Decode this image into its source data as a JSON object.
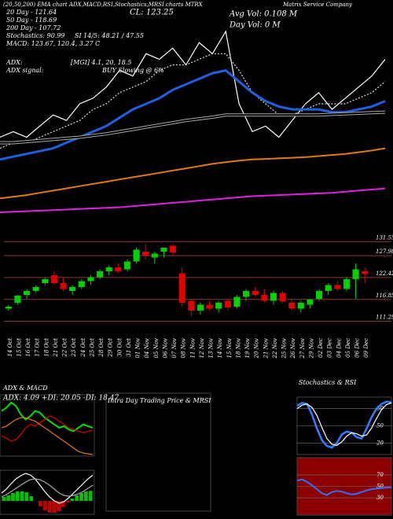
{
  "header": {
    "title": "(20,50,200) EMA chart ADX,MACD,RSI,Stochastics,MRSI charts MTRX",
    "company": "Matrix Service Company",
    "lines": [
      "20 Day - 121.64",
      "50 Day - 118.69",
      "200 Day - 107.72",
      "Stochastics: 90.99",
      "MACD: 123.67, 120.4, 3.27 C"
    ],
    "mid": [
      "CL: 123.25",
      "SI 14/5: 48.21 / 47.55"
    ],
    "right": [
      "Avg Vol: 0.108 M",
      "Day Vol: 0 M"
    ],
    "adx": [
      "ADX:",
      "ADX signal:"
    ],
    "adx_vals": [
      "[MGI] 4.1, 20, 18.5",
      "BUY Slowing @ 6%"
    ]
  },
  "chart_data": [
    {
      "type": "line",
      "series": [
        {
          "color": "#ffffff",
          "values": [
            112,
            113,
            112,
            114,
            116,
            115,
            118,
            119,
            121,
            124,
            123,
            127,
            126,
            128,
            125,
            129,
            127,
            131,
            118,
            113,
            114,
            112,
            115,
            118,
            120,
            117,
            119,
            121,
            123,
            126
          ]
        },
        {
          "color": "#dddddd",
          "dash": true,
          "values": [
            110,
            111,
            111,
            112,
            113,
            114,
            115,
            117,
            118,
            120,
            121,
            122,
            124,
            125,
            125,
            126,
            127,
            127,
            124,
            120,
            118,
            116,
            116,
            117,
            118,
            118,
            118,
            119,
            120,
            122
          ]
        },
        {
          "color": "#1f5fe0",
          "width": 3,
          "values": [
            108,
            108.5,
            109,
            109.5,
            110,
            111,
            112,
            113,
            114,
            115.5,
            117,
            118,
            119,
            120.5,
            121.5,
            122.5,
            123.5,
            124,
            122,
            120,
            118.5,
            117.5,
            117,
            117,
            117,
            116.5,
            116.5,
            117,
            117.5,
            118.5
          ]
        },
        {
          "color": "#aaaaaa",
          "double": true,
          "values": [
            111,
            111,
            111.2,
            111.4,
            111.6,
            111.8,
            112,
            112.3,
            112.6,
            113,
            113.4,
            113.8,
            114.2,
            114.6,
            115,
            115.3,
            115.6,
            116,
            116,
            116,
            116,
            116,
            116,
            116,
            116,
            116.1,
            116.2,
            116.3,
            116.4,
            116.5
          ]
        },
        {
          "color": "#e07a10",
          "width": 2,
          "values": [
            101,
            101.3,
            101.6,
            102,
            102.4,
            102.8,
            103.2,
            103.6,
            104,
            104.4,
            104.8,
            105.2,
            105.6,
            106,
            106.4,
            106.8,
            107.2,
            107.5,
            107.8,
            108,
            108.1,
            108.2,
            108.3,
            108.4,
            108.6,
            108.8,
            109,
            109.3,
            109.6,
            110
          ]
        },
        {
          "color": "#e020e0",
          "width": 2,
          "values": [
            98.5,
            98.6,
            98.7,
            98.8,
            98.9,
            99,
            99.1,
            99.2,
            99.3,
            99.4,
            99.6,
            99.8,
            100,
            100.2,
            100.4,
            100.6,
            100.8,
            101,
            101.2,
            101.4,
            101.5,
            101.6,
            101.7,
            101.8,
            101.9,
            102,
            102.2,
            102.4,
            102.6,
            102.8
          ]
        }
      ]
    },
    {
      "type": "candlestick",
      "ylim": [
        109,
        133
      ],
      "yticks": [
        {
          "value": 131.55,
          "label": "131.55"
        },
        {
          "value": 127.98,
          "label": "127.98"
        },
        {
          "value": 122.42,
          "label": "122.42"
        },
        {
          "value": 116.85,
          "label": "116.85"
        },
        {
          "value": 111.29,
          "label": "111.29"
        }
      ],
      "up_color": "#00d000",
      "down_color": "#e00000",
      "categories": [
        "14 Oct",
        "15 Oct",
        "16 Oct",
        "17 Oct",
        "18 Oct",
        "21 Oct",
        "22 Oct",
        "23 Oct",
        "24 Oct",
        "25 Oct",
        "28 Oct",
        "29 Oct",
        "30 Oct",
        "31 Oct",
        "01 Nov",
        "04 Nov",
        "05 Nov",
        "06 Nov",
        "07 Nov",
        "08 Nov",
        "11 Nov",
        "12 Nov",
        "13 Nov",
        "14 Nov",
        "15 Nov",
        "18 Nov",
        "19 Nov",
        "20 Nov",
        "21 Nov",
        "22 Nov",
        "25 Nov",
        "26 Nov",
        "27 Nov",
        "29 Nov",
        "02 Dec",
        "03 Dec",
        "04 Dec",
        "05 Dec",
        "06 Dec",
        "09 Dec"
      ],
      "open": [
        114.5,
        116,
        118,
        119,
        121,
        123,
        121,
        119,
        120,
        121.5,
        122.5,
        124,
        125,
        124.5,
        126.5,
        129,
        127.5,
        129,
        130.5,
        123.5,
        116.5,
        114,
        115.5,
        114.5,
        116.5,
        115,
        117.5,
        119,
        118,
        116.5,
        118.5,
        116,
        114.5,
        115.5,
        117,
        119,
        120.5,
        119.5,
        122,
        124
      ],
      "high": [
        115.5,
        118,
        119.5,
        120.5,
        122.5,
        124,
        122.5,
        120.5,
        122,
        123,
        124.5,
        125.5,
        126,
        127,
        130,
        131,
        129,
        130,
        131,
        125,
        117,
        116,
        116.5,
        116.5,
        117,
        118,
        119.5,
        120,
        119.5,
        119,
        119,
        117,
        116.5,
        117,
        119.5,
        121,
        121.5,
        122.5,
        126,
        125
      ],
      "low": [
        114,
        115.5,
        117,
        118.5,
        120.5,
        120.5,
        119,
        118,
        119.5,
        120.5,
        122,
        123,
        123.5,
        124,
        126,
        127,
        126,
        127.5,
        128,
        115,
        112.5,
        113,
        114,
        113.5,
        114,
        114.5,
        116.5,
        117.5,
        116,
        115.5,
        116,
        114,
        113.5,
        114.5,
        116.5,
        118,
        119,
        119,
        117,
        121
      ],
      "close": [
        115,
        117.8,
        119,
        120,
        122,
        121,
        119.5,
        120,
        121.5,
        122.5,
        124,
        125,
        124,
        126.5,
        129.5,
        128,
        128.5,
        130,
        128.8,
        116,
        114,
        115.5,
        114.5,
        116,
        114.8,
        117.5,
        119,
        118,
        116.5,
        118.5,
        116.3,
        114.5,
        116,
        116.8,
        119,
        120.5,
        119.5,
        122,
        124.5,
        123.3
      ]
    },
    {
      "type": "line",
      "title": "ADX & MACD",
      "subtitle": "ADX: 4.09 +DI: 20.05 -DI: 18.47",
      "series": [
        {
          "color": "#00e000",
          "width": 2,
          "values": [
            30,
            32,
            35,
            33,
            28,
            25,
            27,
            30,
            29,
            26,
            24,
            22,
            20,
            21,
            19,
            18,
            20,
            22,
            21,
            20
          ]
        },
        {
          "color": "#e00000",
          "values": [
            15,
            14,
            12,
            13,
            16,
            20,
            22,
            21,
            23,
            25,
            27,
            26,
            24,
            22,
            20,
            19,
            18,
            17,
            18,
            18.5
          ]
        },
        {
          "color": "#e07a10",
          "values": [
            20,
            21,
            23,
            25,
            26,
            26,
            25,
            24,
            22,
            20,
            18,
            16,
            14,
            12,
            10,
            8,
            6,
            5,
            4.5,
            4.1
          ]
        }
      ]
    },
    {
      "type": "macd",
      "hist_color": "#00c000",
      "neg_color": "#c00000",
      "histogram": [
        0.5,
        0.7,
        1,
        1.2,
        1.2,
        1.1,
        0.6,
        0,
        -0.7,
        -1.2,
        -1.5,
        -1.5,
        -1.3,
        -0.8,
        -0.2,
        0.3,
        0.7,
        1,
        1.2,
        1.27
      ],
      "series": [
        {
          "color": "#ffffff",
          "values": [
            1,
            1.5,
            2.2,
            2.8,
            3.2,
            3.5,
            3.3,
            2.8,
            2,
            1.2,
            0.5,
            0,
            -0.3,
            -0.1,
            0.4,
            1,
            1.6,
            2.2,
            2.8,
            3.27
          ]
        },
        {
          "color": "#aaaaaa",
          "values": [
            0.5,
            0.8,
            1.2,
            1.6,
            2,
            2.4,
            2.7,
            2.8,
            2.7,
            2.4,
            2,
            1.5,
            1,
            0.7,
            0.6,
            0.7,
            0.9,
            1.2,
            1.6,
            2
          ]
        }
      ]
    },
    {
      "type": "empty",
      "title": "Intra Day Trading Price & MRSI"
    },
    {
      "type": "line",
      "title": "Stochastics & RSI",
      "ylim": [
        0,
        100
      ],
      "yticks": [
        80,
        50,
        20
      ],
      "background": "#000000",
      "series": [
        {
          "color": "#2f7fff",
          "width": 2.5,
          "values": [
            85,
            90,
            88,
            70,
            45,
            25,
            15,
            12,
            20,
            35,
            40,
            38,
            30,
            28,
            45,
            65,
            80,
            88,
            92,
            90.99
          ]
        },
        {
          "color": "#ffffff",
          "values": [
            80,
            86,
            88,
            82,
            68,
            47,
            28,
            18,
            16,
            22,
            32,
            38,
            36,
            32,
            34,
            46,
            63,
            78,
            87,
            90
          ]
        }
      ]
    },
    {
      "type": "line",
      "ylim": [
        0,
        100
      ],
      "yticks": [
        70,
        50,
        30
      ],
      "background": "#8a0000",
      "series": [
        {
          "color": "#3070ff",
          "width": 2,
          "values": [
            60,
            62,
            58,
            52,
            45,
            38,
            35,
            40,
            42,
            41,
            38,
            36,
            37,
            40,
            43,
            45,
            46,
            47,
            48,
            48.21
          ]
        }
      ]
    }
  ]
}
